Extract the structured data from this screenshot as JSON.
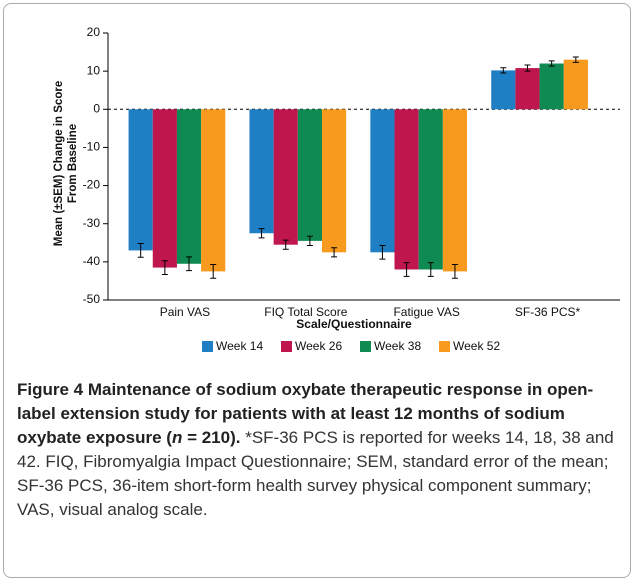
{
  "chart_data": {
    "type": "bar",
    "categories": [
      "Pain VAS",
      "FIQ Total Score",
      "Fatigue VAS",
      "SF-36 PCS*"
    ],
    "series": [
      {
        "name": "Week 14",
        "color": "#1f7fc4",
        "values": [
          -37,
          -32.5,
          -37.5,
          10.2
        ],
        "errors": [
          1.8,
          1.2,
          1.8,
          0.7
        ]
      },
      {
        "name": "Week 26",
        "color": "#c0164e",
        "values": [
          -41.5,
          -35.5,
          -42,
          10.8
        ],
        "errors": [
          1.8,
          1.2,
          1.8,
          0.8
        ]
      },
      {
        "name": "Week 38",
        "color": "#0e8a52",
        "values": [
          -40.5,
          -34.5,
          -42,
          12
        ],
        "errors": [
          1.8,
          1.2,
          1.8,
          0.7
        ]
      },
      {
        "name": "Week 52",
        "color": "#f79a1e",
        "values": [
          -42.5,
          -37.5,
          -42.5,
          13
        ],
        "errors": [
          1.8,
          1.2,
          1.8,
          0.7
        ]
      }
    ],
    "ylim": [
      -50,
      20
    ],
    "yticks": [
      -50,
      -40,
      -30,
      -20,
      -10,
      0,
      10,
      20
    ],
    "xlabel": "Scale/Questionnaire",
    "ylabel": [
      "Mean (±SEM) Change in Score",
      "From Baseline"
    ],
    "legend": "bottom"
  },
  "caption": {
    "bold": "Figure 4 Maintenance of sodium oxybate therapeutic response in open-label extension study for patients with at least 12 months of sodium oxybate exposure (",
    "italic": "n",
    "bold_end": "= 210).",
    "text": "*SF-36 PCS is reported for weeks 14, 18, 38 and 42. FIQ, Fibromyalgia Impact Questionnaire; SEM, standard error of the mean; SF-36 PCS, 36-item short-form health survey physical component summary; VAS, visual analog scale."
  }
}
